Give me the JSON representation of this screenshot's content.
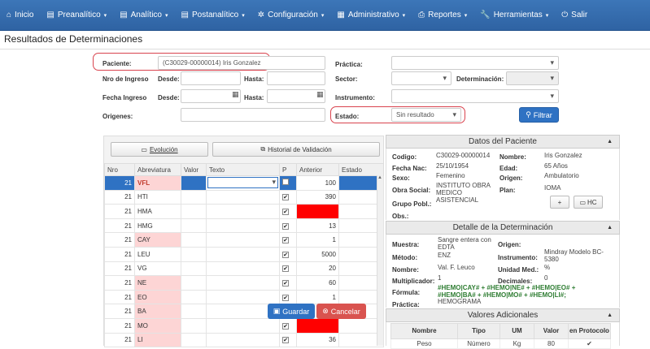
{
  "nav": [
    {
      "icon": "home-icon",
      "glyph": "⌂",
      "label": "Inicio",
      "caret": false
    },
    {
      "icon": "menu-icon",
      "glyph": "▤",
      "label": "Preanalítico",
      "caret": true
    },
    {
      "icon": "menu-icon",
      "glyph": "▤",
      "label": "Analítico",
      "caret": true
    },
    {
      "icon": "menu-icon",
      "glyph": "▤",
      "label": "Postanalítico",
      "caret": true
    },
    {
      "icon": "gear-icon",
      "glyph": "✲",
      "label": "Configuración",
      "caret": true
    },
    {
      "icon": "list-icon",
      "glyph": "▦",
      "label": "Administrativo",
      "caret": true
    },
    {
      "icon": "print-icon",
      "glyph": "⎙",
      "label": "Reportes",
      "caret": true
    },
    {
      "icon": "wrench-icon",
      "glyph": "🔧",
      "label": "Herramientas",
      "caret": true
    },
    {
      "icon": "power-icon",
      "glyph": "⏻",
      "label": "Salir",
      "caret": false
    }
  ],
  "page_title": "Resultados de Determinaciones",
  "filters": {
    "paciente_label": "Paciente:",
    "paciente_value": "(C30029-00000014) Iris Gonzalez",
    "practica_label": "Práctica:",
    "nro_ingreso_label": "Nro de Ingreso",
    "desde_label": "Desde:",
    "hasta_label": "Hasta:",
    "sector_label": "Sector:",
    "determinacion_label": "Determinación:",
    "fecha_ingreso_label": "Fecha Ingreso",
    "instrumento_label": "Instrumento:",
    "origenes_label": "Origenes:",
    "estado_label": "Estado:",
    "estado_value": "Sin resultado",
    "filtrar_label": "Filtrar"
  },
  "grid": {
    "evolucion_label": "Evolución",
    "historial_label": "Historial de Validación",
    "columns": [
      "Nro",
      "Abreviatura",
      "Valor",
      "Texto",
      "P",
      "Anterior",
      "Estado"
    ],
    "rows": [
      {
        "nro": "21",
        "abbr": "VFL",
        "pink": true,
        "checked": false,
        "anterior": "100",
        "red": false
      },
      {
        "nro": "21",
        "abbr": "HTI",
        "pink": false,
        "checked": true,
        "anterior": "390",
        "red": false
      },
      {
        "nro": "21",
        "abbr": "HMA",
        "pink": false,
        "checked": true,
        "anterior": "",
        "red": true
      },
      {
        "nro": "21",
        "abbr": "HMG",
        "pink": false,
        "checked": true,
        "anterior": "13",
        "red": false
      },
      {
        "nro": "21",
        "abbr": "CAY",
        "pink": true,
        "checked": true,
        "anterior": "1",
        "red": false
      },
      {
        "nro": "21",
        "abbr": "LEU",
        "pink": false,
        "checked": true,
        "anterior": "5000",
        "red": false
      },
      {
        "nro": "21",
        "abbr": "VG",
        "pink": false,
        "checked": true,
        "anterior": "20",
        "red": false
      },
      {
        "nro": "21",
        "abbr": "NE",
        "pink": true,
        "checked": true,
        "anterior": "60",
        "red": false
      },
      {
        "nro": "21",
        "abbr": "EO",
        "pink": true,
        "checked": true,
        "anterior": "1",
        "red": false
      },
      {
        "nro": "21",
        "abbr": "BA",
        "pink": true,
        "checked": true,
        "anterior": "",
        "red": false
      },
      {
        "nro": "21",
        "abbr": "MO",
        "pink": true,
        "checked": true,
        "anterior": "",
        "red": true
      },
      {
        "nro": "21",
        "abbr": "LI",
        "pink": true,
        "checked": true,
        "anterior": "36",
        "red": false
      }
    ],
    "guardar_label": "Guardar",
    "cancelar_label": "Cancelar"
  },
  "paciente": {
    "header": "Datos del Paciente",
    "codigo_label": "Codigo:",
    "codigo": "C30029-00000014",
    "nombre_label": "Nombre:",
    "nombre": "Iris Gonzalez",
    "fecha_nac_label": "Fecha Nac:",
    "fecha_nac": "25/10/1954",
    "edad_label": "Edad:",
    "edad": "65 Años",
    "sexo_label": "Sexo:",
    "sexo": "Femenino",
    "origen_label": "Origen:",
    "origen": "Ambulatorio",
    "obra_social_label": "Obra Social:",
    "obra_social": "INSTITUTO OBRA MEDICO ASISTENCIAL",
    "plan_label": "Plan:",
    "plan": "IOMA",
    "grupo_label": "Grupo Pobl.:",
    "obs_label": "Obs.:",
    "add_label": "+",
    "hc_label": "HC"
  },
  "determinacion": {
    "header": "Detalle de la Determinación",
    "muestra_label": "Muestra:",
    "muestra": "Sangre entera con EDTA",
    "origen_label": "Origen:",
    "metodo_label": "Método:",
    "metodo": "ENZ",
    "instrumento_label": "Instrumento:",
    "instrumento": "Mindray Modelo BC-5380",
    "nombre_label": "Nombre:",
    "nombre": "Val. F. Leuco",
    "unidad_label": "Unidad Med.:",
    "unidad": "%",
    "multiplicador_label": "Multiplicador:",
    "multiplicador": "1",
    "decimales_label": "Decimales:",
    "decimales": "0",
    "formula_label": "Fórmula:",
    "formula": "#HEMO|CAY# + #HEMO|NE# + #HEMO|EO# + #HEMO|BA# + #HEMO|MO# + #HEMO|LI#;",
    "practica_label": "Práctica:",
    "practica": "HEMOGRAMA"
  },
  "adicionales": {
    "header": "Valores Adicionales",
    "columns": [
      "Nombre",
      "Tipo",
      "UM",
      "Valor",
      "en Protocolo"
    ],
    "row": [
      "Peso",
      "Número",
      "Kg",
      "80",
      "✔"
    ]
  }
}
